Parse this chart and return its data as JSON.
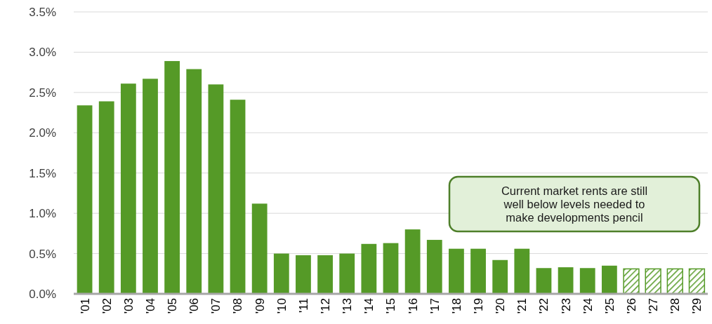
{
  "chart_data": {
    "type": "bar",
    "categories": [
      "'01",
      "'02",
      "'03",
      "'04",
      "'05",
      "'06",
      "'07",
      "'08",
      "'09",
      "'10",
      "'11",
      "'12",
      "'13",
      "'14",
      "'15",
      "'16",
      "'17",
      "'18",
      "'19",
      "'20",
      "'21",
      "'22",
      "'23",
      "'24",
      "'25",
      "'26",
      "'27",
      "'28",
      "'29"
    ],
    "series": [
      {
        "color": "#559a27",
        "values": [
          2.34,
          2.39,
          2.61,
          2.67,
          2.89,
          2.79,
          2.6,
          2.41,
          1.12,
          0.5,
          0.48,
          0.48,
          0.5,
          0.62,
          0.63,
          0.8,
          0.67,
          0.56,
          0.56,
          0.42,
          0.56,
          0.32,
          0.33,
          0.32,
          0.35,
          null,
          null,
          null,
          null
        ]
      },
      {
        "color": "#559a27",
        "values": [
          null,
          null,
          null,
          null,
          null,
          null,
          null,
          null,
          null,
          null,
          null,
          null,
          null,
          null,
          null,
          null,
          null,
          null,
          null,
          null,
          null,
          null,
          null,
          null,
          null,
          0.31,
          0.31,
          0.31,
          0.31
        ]
      }
    ],
    "ylim": [
      0,
      3.5
    ],
    "yticks": [
      {
        "value": 0,
        "label": "0.0%"
      },
      {
        "value": 0.5,
        "label": "0.5%"
      },
      {
        "value": 1,
        "label": "1.0%"
      },
      {
        "value": 1.5,
        "label": "1.5%"
      },
      {
        "value": 2,
        "label": "2.0%"
      },
      {
        "value": 2.5,
        "label": "2.5%"
      },
      {
        "value": 3,
        "label": "3.0%"
      },
      {
        "value": 3.5,
        "label": "3.5%"
      }
    ],
    "grid": "y",
    "annotations": [
      "Current market rents are still well below levels needed to make developments pencil"
    ]
  }
}
